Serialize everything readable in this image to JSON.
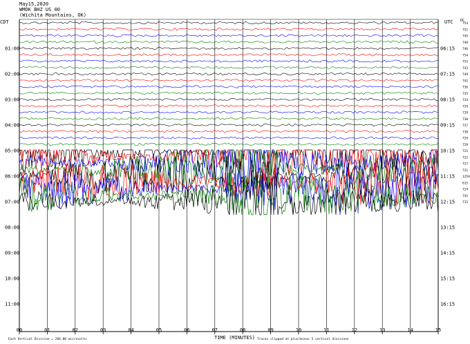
{
  "header": {
    "date": "May15,2020",
    "station": "WMOK BHZ US 00",
    "location": "(Wichita Mountains, OK)"
  },
  "chart_data": {
    "type": "line",
    "title": "May15,2020",
    "left_axis_label": "CDT",
    "right_axis_label": "UTC",
    "right_scale_label": "DC",
    "xlabel": "TIME (MINUTES)",
    "x_ticks": [
      "00",
      "01",
      "02",
      "03",
      "04",
      "05",
      "06",
      "07",
      "08",
      "09",
      "10",
      "11",
      "12",
      "13",
      "14",
      "15"
    ],
    "xlim": [
      0,
      15
    ],
    "left_hour_labels": [
      "01:00",
      "02:00",
      "03:00",
      "04:00",
      "05:00",
      "06:00",
      "07:00",
      "08:00",
      "09:00",
      "10:00",
      "11:00"
    ],
    "right_hour_labels": [
      "06:15",
      "07:15",
      "08:15",
      "09:15",
      "10:15",
      "11:15",
      "12:15",
      "13:15",
      "14:15",
      "15:15",
      "16:15"
    ],
    "dc_offsets": [
      "754",
      "751",
      "745",
      "749",
      "746",
      "754",
      "753",
      "743",
      "749",
      "742",
      "736",
      "735",
      "734",
      "729",
      "729",
      "730",
      "727",
      "730",
      "729",
      "729",
      "721",
      "722",
      "727",
      "721",
      "1259",
      "615",
      "724",
      "741",
      "715"
    ],
    "trace_colors": [
      "#000000",
      "#ff0000",
      "#0000ff",
      "#008000"
    ],
    "traces_shown": 29,
    "active_from_trace": 20,
    "footer_left": "Each Vertical Division =  284.00 microvolts",
    "footer_right": "Traces clipped at plus/minus 5 vertical divisions"
  }
}
